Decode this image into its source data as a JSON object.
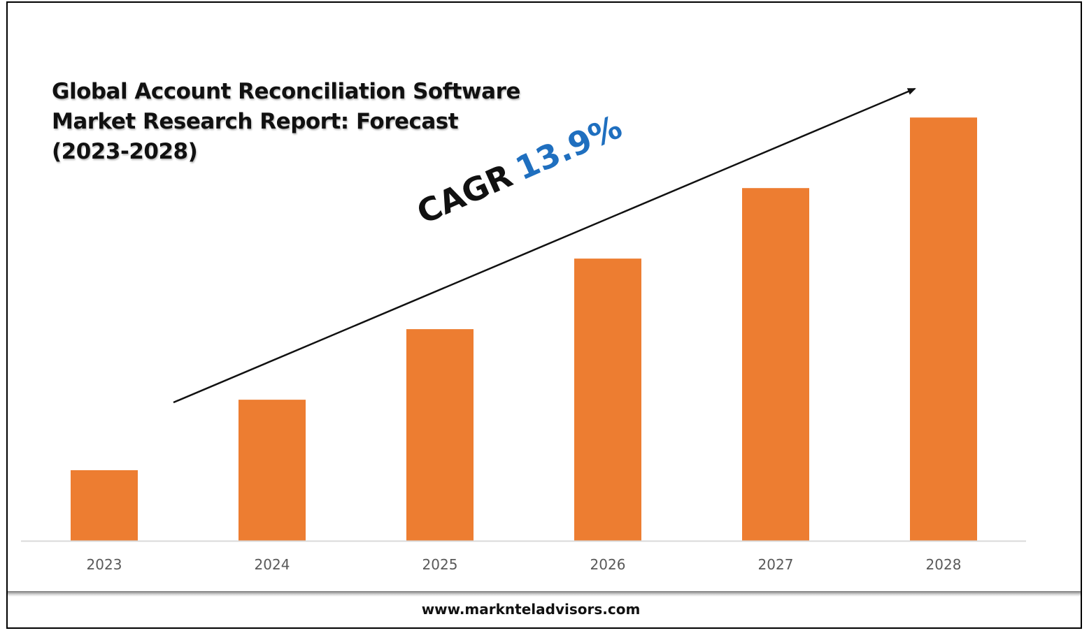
{
  "chart_data": {
    "type": "bar",
    "title": "Global Account Reconciliation Software Market Research Report: Forecast (2023-2028)",
    "title_lines": [
      "Global Account Reconciliation Software",
      "Market Research Report: Forecast",
      "(2023-2028)"
    ],
    "categories": [
      "2023",
      "2024",
      "2025",
      "2026",
      "2027",
      "2028"
    ],
    "values": [
      1,
      2,
      3,
      4,
      5,
      6
    ],
    "ylim": [
      0,
      6.2
    ],
    "xlabel": "",
    "ylabel": "",
    "grid": false,
    "bar_color": "#ed7d31",
    "annotation": {
      "label": "CAGR",
      "value": "13.9%",
      "value_color": "#1f6fbf"
    }
  },
  "footer": {
    "url": "www.marknteladvisors.com"
  }
}
